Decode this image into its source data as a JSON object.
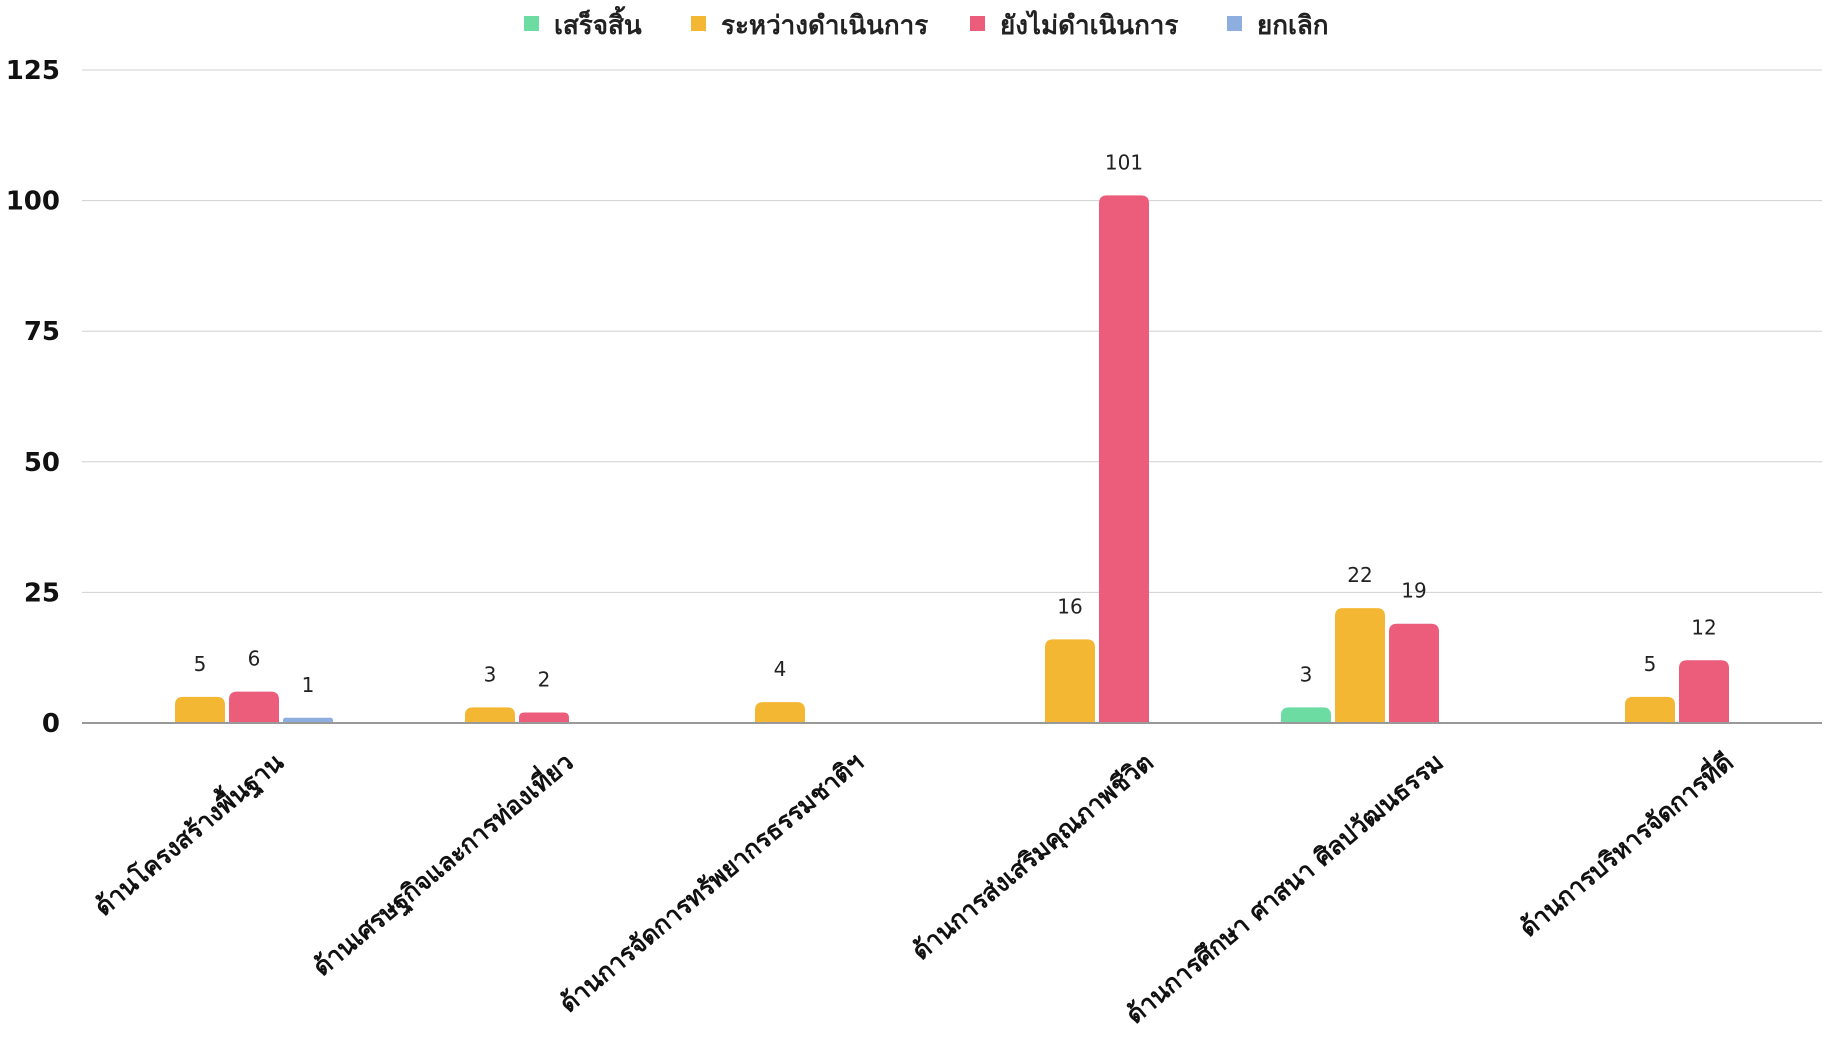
{
  "chart_data": {
    "type": "bar",
    "title": "",
    "xlabel": "",
    "ylabel": "",
    "ylim": [
      0,
      125
    ],
    "yticks": [
      0,
      25,
      50,
      75,
      100,
      125
    ],
    "grid": true,
    "legend_position": "top-center",
    "categories": [
      "ด้านโครงสร้างพื้นฐาน",
      "ด้านเศรษฐกิจและการท่องเที่ยว",
      "ด้านการจัดการทรัพยากรธรรมชาติฯ",
      "ด้านการส่งเสริมคุณภาพชีวิต",
      "ด้านการศึกษา ศาสนา ศิลปวัฒนธรรม",
      "ด้านการบริหารจัดการที่ดี"
    ],
    "series": [
      {
        "name": "เสร็จสิ้น",
        "color": "#6ddca2",
        "values": [
          null,
          null,
          null,
          null,
          3,
          null
        ]
      },
      {
        "name": "ระหว่างดำเนินการ",
        "color": "#f4b733",
        "values": [
          5,
          3,
          4,
          16,
          22,
          5
        ]
      },
      {
        "name": "ยังไม่ดำเนินการ",
        "color": "#ec5d7c",
        "values": [
          6,
          2,
          null,
          101,
          19,
          12
        ]
      },
      {
        "name": "ยกเลิก",
        "color": "#8eaee0",
        "values": [
          1,
          null,
          null,
          null,
          null,
          null
        ]
      }
    ],
    "grid_color": "#d0d0d0",
    "axis_color": "#999999"
  }
}
